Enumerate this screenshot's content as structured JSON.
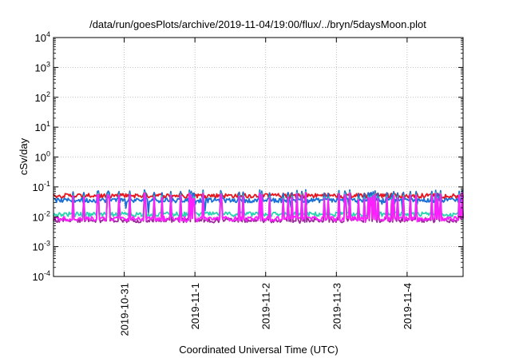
{
  "chart_data": {
    "type": "line",
    "title": "/data/run/goesPlots/archive/2019-11-04/19:00/flux/../bryn/5daysMoon.plot",
    "xlabel": "Coordinated Universal Time (UTC)",
    "ylabel": "cSv/day",
    "yscale": "log",
    "ylim": [
      0.0001,
      10000
    ],
    "y_ticks": [
      {
        "value": 0.0001,
        "base": "10",
        "exp": "-4"
      },
      {
        "value": 0.001,
        "base": "10",
        "exp": "-3"
      },
      {
        "value": 0.01,
        "base": "10",
        "exp": "-2"
      },
      {
        "value": 0.1,
        "base": "10",
        "exp": "-1"
      },
      {
        "value": 1,
        "base": "10",
        "exp": "0"
      },
      {
        "value": 10,
        "base": "10",
        "exp": "1"
      },
      {
        "value": 100,
        "base": "10",
        "exp": "2"
      },
      {
        "value": 1000,
        "base": "10",
        "exp": "3"
      },
      {
        "value": 10000,
        "base": "10",
        "exp": "4"
      }
    ],
    "xlim": [
      "2019-10-30T00:00",
      "2019-11-04T19:00"
    ],
    "x_ticks": [
      "2019-10-31",
      "2019-11-1",
      "2019-11-2",
      "2019-11-3",
      "2019-11-4"
    ],
    "grid": true,
    "series": [
      {
        "color": "#e8141e",
        "base": 0.05,
        "spike": 0.07,
        "dip": 0.04
      },
      {
        "color": "#1a6fd6",
        "base": 0.035,
        "spike": 0.08,
        "dip": 0.012
      },
      {
        "color": "#2bd3b0",
        "base": 0.012,
        "spike": 0.07,
        "dip": 0.01
      },
      {
        "color": "#9a2a9a",
        "base": 0.0075,
        "spike": 0.06,
        "dip": 0.006
      },
      {
        "color": "#ff1eff",
        "base": 0.0085,
        "spike": 0.065,
        "dip": 0.0065
      }
    ]
  }
}
